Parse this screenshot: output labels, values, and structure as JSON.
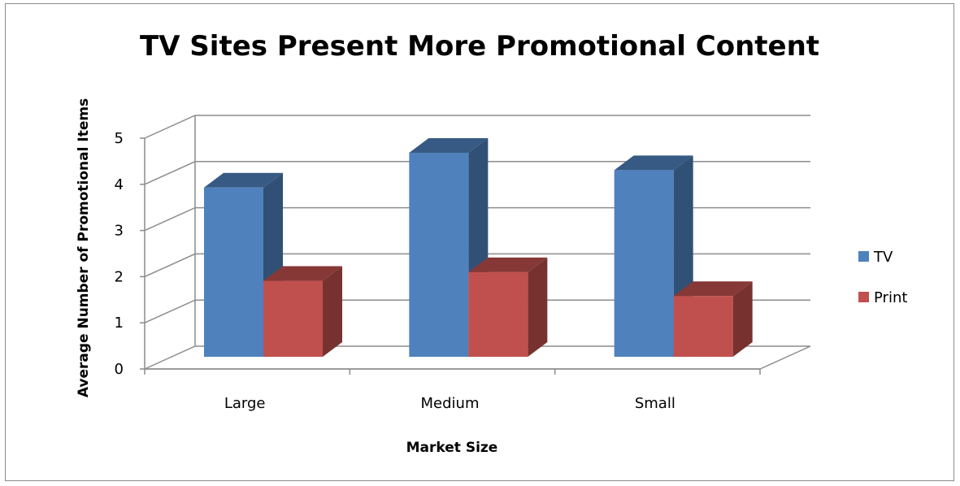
{
  "chart_data": {
    "type": "bar",
    "title": "TV Sites Present More Promotional Content",
    "xlabel": "Market Size",
    "ylabel": "Average Number of Promotional Items",
    "categories": [
      "Large",
      "Medium",
      "Small"
    ],
    "series": [
      {
        "name": "TV",
        "values": [
          3.9,
          4.7,
          4.3
        ],
        "color": "#4F81BD"
      },
      {
        "name": "Print",
        "values": [
          1.75,
          1.95,
          1.4
        ],
        "color": "#C0504D"
      }
    ],
    "ylim": [
      0,
      5
    ],
    "yticks": [
      0,
      1,
      2,
      3,
      4,
      5
    ],
    "grid": true,
    "three_d": true,
    "legend_position": "right"
  }
}
